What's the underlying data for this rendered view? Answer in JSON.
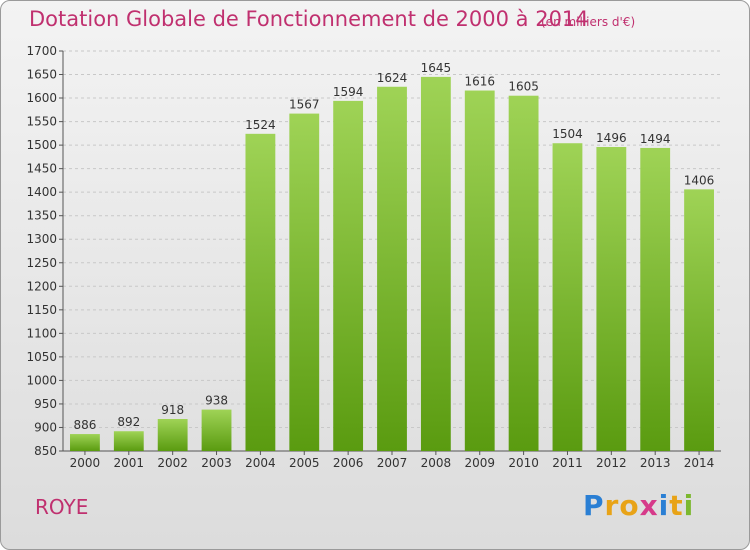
{
  "header": {
    "title": "Dotation Globale de Fonctionnement de 2000 à 2014",
    "unit_note": "(en milliers d'€)"
  },
  "footer": {
    "commune": "ROYE",
    "logo_text": "Proxiti"
  },
  "colors": {
    "bar_top": "#9fd356",
    "bar_bottom": "#5a9b10",
    "title": "#c0306f"
  },
  "chart_data": {
    "type": "bar",
    "categories": [
      "2000",
      "2001",
      "2002",
      "2003",
      "2004",
      "2005",
      "2006",
      "2007",
      "2008",
      "2009",
      "2010",
      "2011",
      "2012",
      "2013",
      "2014"
    ],
    "values": [
      886,
      892,
      918,
      938,
      1524,
      1567,
      1594,
      1624,
      1645,
      1616,
      1605,
      1504,
      1496,
      1494,
      1406
    ],
    "title": "Dotation Globale de Fonctionnement de 2000 à 2014",
    "subtitle": "(en milliers d'€)",
    "xlabel": "",
    "ylabel": "",
    "ylim": [
      850,
      1700
    ],
    "yticks": [
      850,
      900,
      950,
      1000,
      1050,
      1100,
      1150,
      1200,
      1250,
      1300,
      1350,
      1400,
      1450,
      1500,
      1550,
      1600,
      1650,
      1700
    ],
    "grid": true,
    "data_labels": true
  }
}
